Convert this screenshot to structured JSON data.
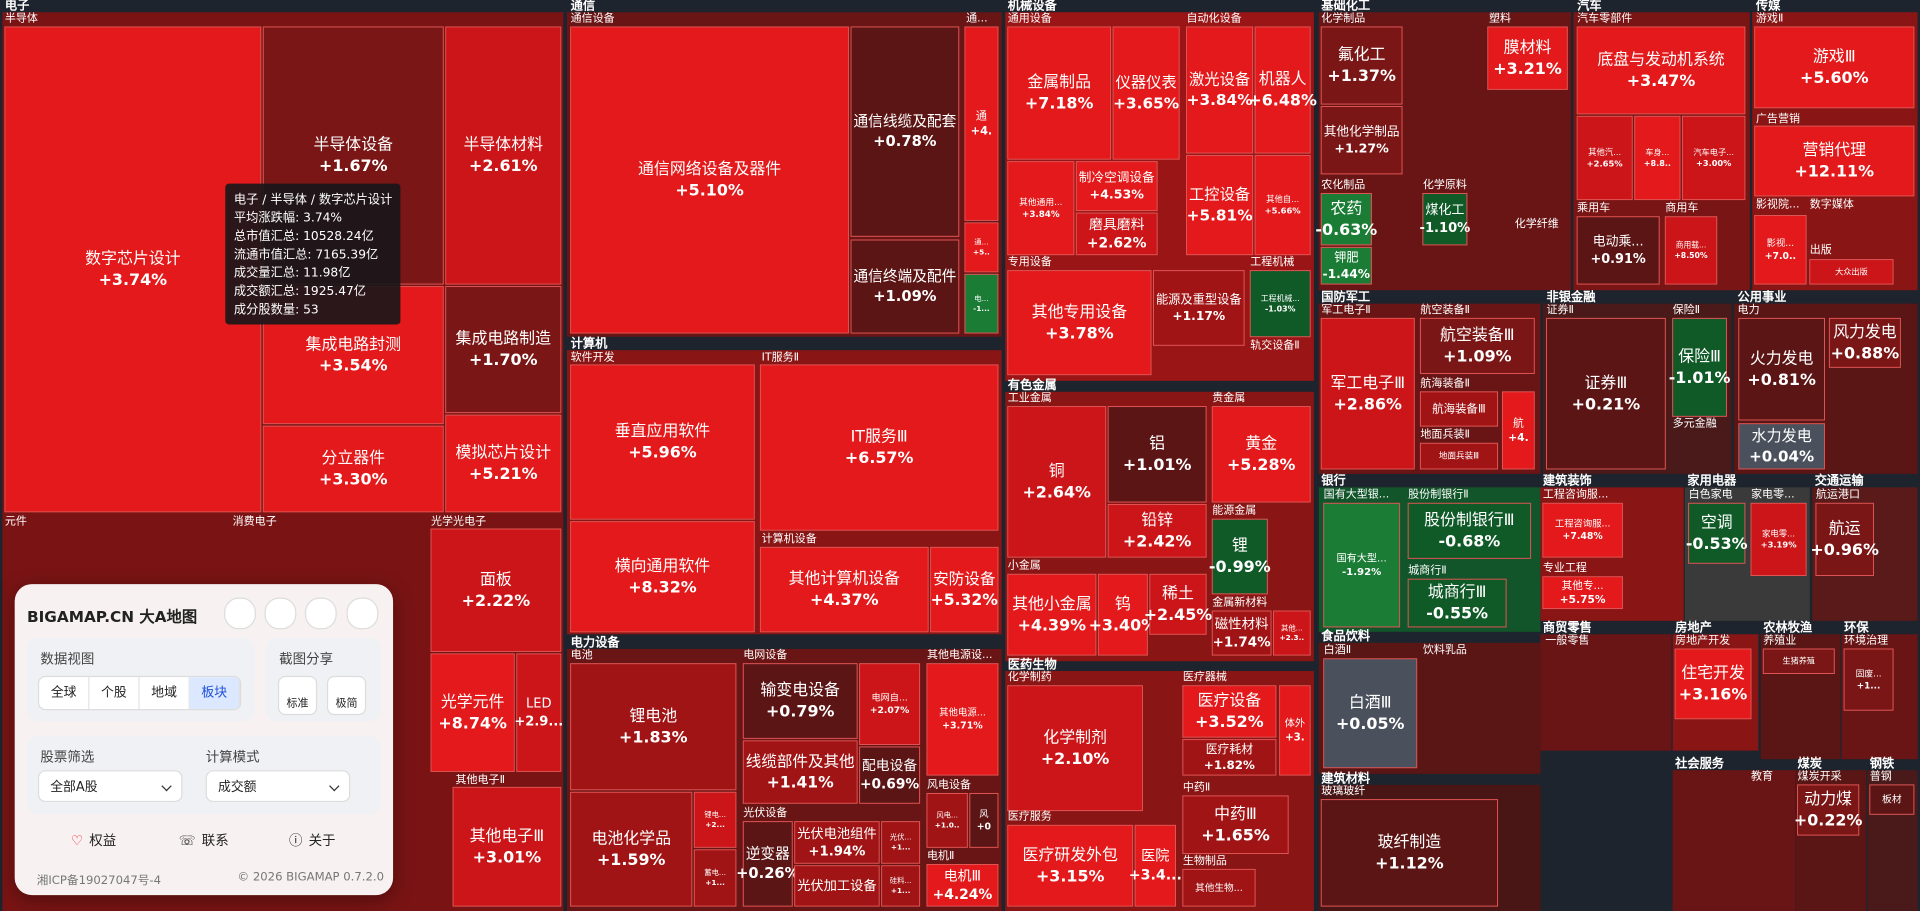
{
  "sectors": [
    {
      "name": "电子",
      "groups": [
        {
          "name": "半导体",
          "cells": [
            {
              "name": "数字芯片设计",
              "change": "+3.74%"
            },
            {
              "name": "半导体设备",
              "change": "+1.67%"
            },
            {
              "name": "半导体材料",
              "change": "+2.61%"
            },
            {
              "name": "集成电路封测",
              "change": "+3.54%"
            },
            {
              "name": "集成电路制造",
              "change": "+1.70%"
            },
            {
              "name": "分立器件",
              "change": "+3.30%"
            },
            {
              "name": "模拟芯片设计",
              "change": "+5.21%"
            }
          ]
        },
        {
          "name": "元件",
          "cells": []
        },
        {
          "name": "消费电子",
          "cells": []
        },
        {
          "name": "光学光电子",
          "cells": [
            {
              "name": "面板",
              "change": "+2.22%"
            },
            {
              "name": "光学元件",
              "change": "+8.74%"
            },
            {
              "name": "LED",
              "change": "+2.9..."
            }
          ]
        },
        {
          "name": "其他电子Ⅱ",
          "cells": [
            {
              "name": "其他电子Ⅲ",
              "change": "+3.01%"
            }
          ]
        }
      ]
    },
    {
      "name": "通信",
      "groups": [
        {
          "name": "通信设备",
          "cells": [
            {
              "name": "通信网络设备及器件",
              "change": "+5.10%"
            },
            {
              "name": "通信线缆及配套",
              "change": "+0.78%"
            },
            {
              "name": "通信终端及配件",
              "change": "+1.09%"
            }
          ]
        },
        {
          "name": "通...",
          "cells": [
            {
              "name": "通",
              "change": "+4."
            },
            {
              "name": "通...",
              "change": "+5.."
            },
            {
              "name": "电...",
              "change": "-1..."
            }
          ]
        }
      ]
    },
    {
      "name": "计算机",
      "groups": [
        {
          "name": "软件开发",
          "cells": [
            {
              "name": "垂直应用软件",
              "change": "+5.96%"
            },
            {
              "name": "横向通用软件",
              "change": "+8.32%"
            }
          ]
        },
        {
          "name": "IT服务Ⅱ",
          "cells": [
            {
              "name": "IT服务Ⅲ",
              "change": "+6.57%"
            }
          ]
        },
        {
          "name": "计算机设备",
          "cells": [
            {
              "name": "其他计算机设备",
              "change": "+4.37%"
            },
            {
              "name": "安防设备",
              "change": "+5.32%"
            }
          ]
        }
      ]
    },
    {
      "name": "电力设备",
      "groups": [
        {
          "name": "电池",
          "cells": [
            {
              "name": "锂电池",
              "change": "+1.83%"
            },
            {
              "name": "电池化学品",
              "change": "+1.59%"
            },
            {
              "name": "锂电...",
              "change": "+2..."
            },
            {
              "name": "蓄电...",
              "change": "+1..."
            }
          ]
        },
        {
          "name": "电网设备",
          "cells": [
            {
              "name": "输变电设备",
              "change": "+0.79%"
            },
            {
              "name": "线缆部件及其他",
              "change": "+1.41%"
            },
            {
              "name": "电网自...",
              "change": "+2.07%"
            },
            {
              "name": "配电设备",
              "change": "+0.69%"
            }
          ]
        },
        {
          "name": "其他电源设...",
          "cells": [
            {
              "name": "其他电源...",
              "change": "+3.71%"
            }
          ]
        },
        {
          "name": "光伏设备",
          "cells": [
            {
              "name": "逆变器",
              "change": "+0.26%"
            },
            {
              "name": "光伏电池组件",
              "change": "+1.94%"
            },
            {
              "name": "光伏加工设备"
            },
            {
              "name": "光伏...",
              "change": "+1..."
            },
            {
              "name": "硅料...",
              "change": "+1..."
            }
          ]
        },
        {
          "name": "风电设备",
          "cells": [
            {
              "name": "风电...",
              "change": "+1.0.."
            },
            {
              "name": "风",
              "change": "+0"
            }
          ]
        },
        {
          "name": "电机Ⅱ",
          "cells": [
            {
              "name": "电机Ⅲ",
              "change": "+4.24%"
            }
          ]
        }
      ]
    },
    {
      "name": "机械设备",
      "groups": [
        {
          "name": "通用设备",
          "cells": [
            {
              "name": "金属制品",
              "change": "+7.18%"
            },
            {
              "name": "仪器仪表",
              "change": "+3.65%"
            },
            {
              "name": "其他通用...",
              "change": "+3.84%"
            },
            {
              "name": "制冷空调设备",
              "change": "+4.53%"
            },
            {
              "name": "磨具磨料",
              "change": "+2.62%"
            }
          ]
        },
        {
          "name": "自动化设备",
          "cells": [
            {
              "name": "激光设备",
              "change": "+3.84%"
            },
            {
              "name": "机器人",
              "change": "+6.48%"
            },
            {
              "name": "工控设备",
              "change": "+5.81%"
            },
            {
              "name": "其他自...",
              "change": "+5.66%"
            }
          ]
        },
        {
          "name": "专用设备",
          "cells": [
            {
              "name": "其他专用设备",
              "change": "+3.78%"
            },
            {
              "name": "能源及重型设备",
              "change": "+1.17%"
            }
          ]
        },
        {
          "name": "工程机械",
          "cells": [
            {
              "name": "工程机械...",
              "change": "-1.03%"
            }
          ]
        },
        {
          "name": "轨交设备Ⅱ",
          "cells": []
        }
      ]
    },
    {
      "name": "有色金属",
      "groups": [
        {
          "name": "工业金属",
          "cells": [
            {
              "name": "铜",
              "change": "+2.64%"
            },
            {
              "name": "铝",
              "change": "+1.01%"
            },
            {
              "name": "铅锌",
              "change": "+2.42%"
            }
          ]
        },
        {
          "name": "贵金属",
          "cells": [
            {
              "name": "黄金",
              "change": "+5.28%"
            }
          ]
        },
        {
          "name": "能源金属",
          "cells": [
            {
              "name": "锂",
              "change": "-0.99%"
            }
          ]
        },
        {
          "name": "小金属",
          "cells": [
            {
              "name": "其他小金属",
              "change": "+4.39%"
            },
            {
              "name": "钨",
              "change": "+3.40%"
            },
            {
              "name": "稀土",
              "change": "+2.45%"
            }
          ]
        },
        {
          "name": "金属新材料",
          "cells": [
            {
              "name": "磁性材料",
              "change": "+1.74%"
            },
            {
              "name": "其他...",
              "change": "+2.3.."
            }
          ]
        }
      ]
    },
    {
      "name": "医药生物",
      "groups": [
        {
          "name": "化学制药",
          "cells": [
            {
              "name": "化学制剂",
              "change": "+2.10%"
            }
          ]
        },
        {
          "name": "医疗器械",
          "cells": [
            {
              "name": "医疗设备",
              "change": "+3.52%"
            },
            {
              "name": "医疗耗材",
              "change": "+1.82%"
            },
            {
              "name": "体外",
              "change": "+3."
            }
          ]
        },
        {
          "name": "中药Ⅱ",
          "cells": [
            {
              "name": "中药Ⅲ",
              "change": "+1.65%"
            }
          ]
        },
        {
          "name": "医疗服务",
          "cells": [
            {
              "name": "医疗研发外包",
              "change": "+3.15%"
            },
            {
              "name": "医院",
              "change": "+3.4..."
            }
          ]
        },
        {
          "name": "生物制品",
          "cells": [
            {
              "name": "其他生物..."
            }
          ]
        }
      ]
    },
    {
      "name": "基础化工",
      "groups": [
        {
          "name": "化学制品",
          "cells": [
            {
              "name": "氟化工",
              "change": "+1.37%"
            },
            {
              "name": "其他化学制品",
              "change": "+1.27%"
            }
          ]
        },
        {
          "name": "塑料",
          "cells": [
            {
              "name": "膜材料",
              "change": "+3.21%"
            }
          ]
        },
        {
          "name": "农化制品",
          "cells": [
            {
              "name": "农药",
              "change": "-0.63%"
            },
            {
              "name": "钾肥",
              "change": "-1.44%"
            }
          ]
        },
        {
          "name": "化学原料",
          "cells": [
            {
              "name": "煤化工",
              "change": "-1.10%"
            }
          ]
        },
        {
          "name": "化学纤维",
          "cells": []
        }
      ]
    },
    {
      "name": "汽车",
      "groups": [
        {
          "name": "汽车零部件",
          "cells": [
            {
              "name": "底盘与发动机系统",
              "change": "+3.47%"
            },
            {
              "name": "其他汽...",
              "change": "+2.65%"
            },
            {
              "name": "车身...",
              "change": "+8.8.."
            },
            {
              "name": "汽车电子...",
              "change": "+3.00%"
            }
          ]
        },
        {
          "name": "乘用车",
          "cells": [
            {
              "name": "电动乘...",
              "change": "+0.91%"
            }
          ]
        },
        {
          "name": "商用车",
          "cells": [
            {
              "name": "商用载...",
              "change": "+8.50%"
            }
          ]
        }
      ]
    },
    {
      "name": "传媒",
      "groups": [
        {
          "name": "游戏Ⅱ",
          "cells": [
            {
              "name": "游戏Ⅲ",
              "change": "+5.60%"
            }
          ]
        },
        {
          "name": "广告营销",
          "cells": [
            {
              "name": "营销代理",
              "change": "+12.11%"
            }
          ]
        },
        {
          "name": "影视院...",
          "cells": [
            {
              "name": "影视...",
              "change": "+7.0.."
            }
          ]
        },
        {
          "name": "数字媒体",
          "cells": []
        },
        {
          "name": "出版",
          "cells": [
            {
              "name": "大众出版"
            }
          ]
        }
      ]
    },
    {
      "name": "国防军工",
      "groups": [
        {
          "name": "军工电子Ⅱ",
          "cells": [
            {
              "name": "军工电子Ⅲ",
              "change": "+2.86%"
            }
          ]
        },
        {
          "name": "航空装备Ⅱ",
          "cells": [
            {
              "name": "航空装备Ⅲ",
              "change": "+1.09%"
            }
          ]
        },
        {
          "name": "航海装备Ⅱ",
          "cells": [
            {
              "name": "航海装备Ⅲ"
            },
            {
              "name": "航",
              "change": "+4."
            }
          ]
        },
        {
          "name": "地面兵装Ⅱ",
          "cells": [
            {
              "name": "地面兵装Ⅲ"
            }
          ]
        }
      ]
    },
    {
      "name": "非银金融",
      "groups": [
        {
          "name": "证券Ⅱ",
          "cells": [
            {
              "name": "证券Ⅲ",
              "change": "+0.21%"
            }
          ]
        },
        {
          "name": "保险Ⅱ",
          "cells": [
            {
              "name": "保险Ⅲ",
              "change": "-1.01%"
            }
          ]
        },
        {
          "name": "多元金融",
          "cells": []
        }
      ]
    },
    {
      "name": "公用事业",
      "groups": [
        {
          "name": "电力",
          "cells": [
            {
              "name": "火力发电",
              "change": "+0.81%"
            },
            {
              "name": "风力发电",
              "change": "+0.88%"
            },
            {
              "name": "水力发电",
              "change": "+0.04%"
            }
          ]
        }
      ]
    },
    {
      "name": "银行",
      "groups": [
        {
          "name": "国有大型银...",
          "cells": [
            {
              "name": "国有大型...",
              "change": "-1.92%"
            }
          ]
        },
        {
          "name": "股份制银行Ⅱ",
          "cells": [
            {
              "name": "股份制银行Ⅲ",
              "change": "-0.68%"
            }
          ]
        },
        {
          "name": "城商行Ⅱ",
          "cells": [
            {
              "name": "城商行Ⅲ",
              "change": "-0.55%"
            }
          ]
        }
      ]
    },
    {
      "name": "建筑装饰",
      "groups": [
        {
          "name": "工程咨询服...",
          "cells": [
            {
              "name": "工程咨询服...",
              "change": "+7.48%"
            }
          ]
        },
        {
          "name": "专业工程",
          "cells": [
            {
              "name": "其他专...",
              "change": "+5.75%"
            }
          ]
        }
      ]
    },
    {
      "name": "家用电器",
      "groups": [
        {
          "name": "白色家电",
          "cells": [
            {
              "name": "空调",
              "change": "-0.53%"
            }
          ]
        },
        {
          "name": "家电零...",
          "cells": [
            {
              "name": "家电零...",
              "change": "+3.19%"
            }
          ]
        }
      ]
    },
    {
      "name": "交通运输",
      "groups": [
        {
          "name": "航运港口",
          "cells": [
            {
              "name": "航运",
              "change": "+0.96%"
            }
          ]
        }
      ]
    },
    {
      "name": "食品饮料",
      "groups": [
        {
          "name": "白酒Ⅱ",
          "cells": [
            {
              "name": "白酒Ⅲ",
              "change": "+0.05%"
            }
          ]
        },
        {
          "name": "饮料乳品",
          "cells": []
        }
      ]
    },
    {
      "name": "商贸零售",
      "groups": [
        {
          "name": "一般零售",
          "cells": []
        }
      ]
    },
    {
      "name": "房地产",
      "groups": [
        {
          "name": "房地产开发",
          "cells": [
            {
              "name": "住宅开发",
              "change": "+3.16%"
            }
          ]
        }
      ]
    },
    {
      "name": "农林牧渔",
      "groups": [
        {
          "name": "养殖业",
          "cells": [
            {
              "name": "生猪养殖"
            }
          ]
        }
      ]
    },
    {
      "name": "环保",
      "groups": [
        {
          "name": "环境治理",
          "cells": [
            {
              "name": "固废...",
              "change": "+1..."
            }
          ]
        }
      ]
    },
    {
      "name": "建筑材料",
      "groups": [
        {
          "name": "玻璃玻纤",
          "cells": [
            {
              "name": "玻纤制造",
              "change": "+1.12%"
            }
          ]
        }
      ]
    },
    {
      "name": "社会服务",
      "groups": [
        {
          "name": "教育",
          "cells": []
        }
      ]
    },
    {
      "name": "煤炭",
      "groups": [
        {
          "name": "煤炭开采",
          "cells": [
            {
              "name": "动力煤",
              "change": "+0.22%"
            }
          ]
        }
      ]
    },
    {
      "name": "钢铁",
      "groups": [
        {
          "name": "普钢",
          "cells": [
            {
              "name": "板材"
            }
          ]
        }
      ]
    }
  ],
  "tooltip": {
    "path": "电子 / 半导体 / 数字芯片设计",
    "rows": [
      {
        "label": "平均涨跌幅:",
        "value": "3.74%"
      },
      {
        "label": "总市值汇总:",
        "value": "10528.24亿"
      },
      {
        "label": "流通市值汇总:",
        "value": "7165.39亿"
      },
      {
        "label": "成交量汇总:",
        "value": "11.98亿"
      },
      {
        "label": "成交额汇总:",
        "value": "1925.47亿"
      },
      {
        "label": "成分股数量:",
        "value": "53"
      }
    ]
  },
  "panel": {
    "brand": "BIGAMAP.CN 大A地图",
    "data_view": {
      "title": "数据视图",
      "tabs": [
        "全球",
        "个股",
        "地域",
        "板块"
      ]
    },
    "share": {
      "title": "截图分享",
      "options": [
        "标准",
        "极简"
      ]
    },
    "filter": {
      "title": "股票筛选",
      "value": "全部A股"
    },
    "mode": {
      "title": "计算模式",
      "value": "成交额"
    },
    "links": [
      "权益",
      "联系",
      "关于"
    ],
    "icp": "湘ICP备19027047号-4",
    "copyright": "© 2026 BIGAMAP 0.7.2.0"
  }
}
